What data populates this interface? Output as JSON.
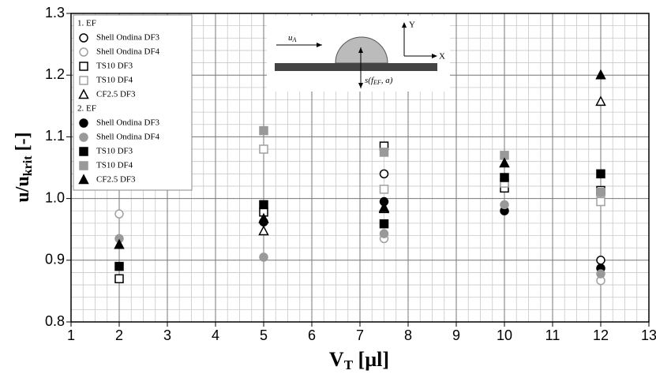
{
  "chart_data": {
    "type": "scatter",
    "xlabel": [
      "V",
      "T",
      " [µl]"
    ],
    "ylabel": [
      "u/u",
      "krit",
      " [-]"
    ],
    "x": [
      2,
      5,
      7.5,
      10,
      12
    ],
    "xlim": [
      1,
      13
    ],
    "xticks": [
      1,
      2,
      3,
      4,
      5,
      6,
      7,
      8,
      9,
      10,
      11,
      12,
      13
    ],
    "ylim": [
      0.8,
      1.3
    ],
    "yticks": [
      0.8,
      0.9,
      {
        "value": 1,
        "label": "1.0"
      },
      1.1,
      1.2,
      1.3
    ],
    "grid": true,
    "minor_grid": true,
    "legend": "upper left",
    "groups": [
      {
        "name": "1. EF",
        "series": [
          {
            "name": "Shell Ondina DF3",
            "color": "#000000",
            "marker": "circle",
            "filled": false,
            "values": [
              null,
              null,
              1.04,
              null,
              0.9
            ]
          },
          {
            "name": "Shell Ondina DF4",
            "color": "#a0a0a0",
            "marker": "circle",
            "filled": false,
            "values": [
              0.975,
              null,
              0.935,
              null,
              0.867
            ]
          },
          {
            "name": "TS10 DF3",
            "color": "#000000",
            "marker": "square",
            "filled": false,
            "values": [
              0.87,
              0.978,
              1.085,
              1.017,
              1.013
            ]
          },
          {
            "name": "TS10 DF4",
            "color": "#a0a0a0",
            "marker": "square",
            "filled": false,
            "values": [
              null,
              1.08,
              1.015,
              1.025,
              0.995
            ]
          },
          {
            "name": "CF2.5 DF3",
            "color": "#000000",
            "marker": "triangle",
            "filled": false,
            "values": [
              null,
              0.947,
              0.983,
              null,
              1.157
            ]
          }
        ]
      },
      {
        "name": "2. EF",
        "series": [
          {
            "name": "Shell Ondina DF3",
            "color": "#000000",
            "marker": "circle",
            "filled": true,
            "values": [
              null,
              0.962,
              0.995,
              0.98,
              0.887
            ]
          },
          {
            "name": "Shell Ondina DF4",
            "color": "#999999",
            "marker": "circle",
            "filled": true,
            "values": [
              0.935,
              0.905,
              0.943,
              0.99,
              0.878
            ]
          },
          {
            "name": "TS10 DF3",
            "color": "#000000",
            "marker": "square",
            "filled": true,
            "values": [
              0.89,
              0.99,
              0.959,
              1.034,
              1.04
            ]
          },
          {
            "name": "TS10 DF4",
            "color": "#999999",
            "marker": "square",
            "filled": true,
            "values": [
              null,
              1.11,
              1.075,
              1.07,
              1.01
            ]
          },
          {
            "name": "CF2.5 DF3",
            "color": "#000000",
            "marker": "triangle",
            "filled": true,
            "values": [
              0.925,
              0.967,
              0.985,
              1.057,
              1.2
            ]
          }
        ]
      }
    ],
    "inset": {
      "velocity": [
        "u",
        "A"
      ],
      "y_axis": "Y",
      "x_axis": "X",
      "distance": [
        "s(f",
        "EF",
        ", a)"
      ]
    }
  }
}
